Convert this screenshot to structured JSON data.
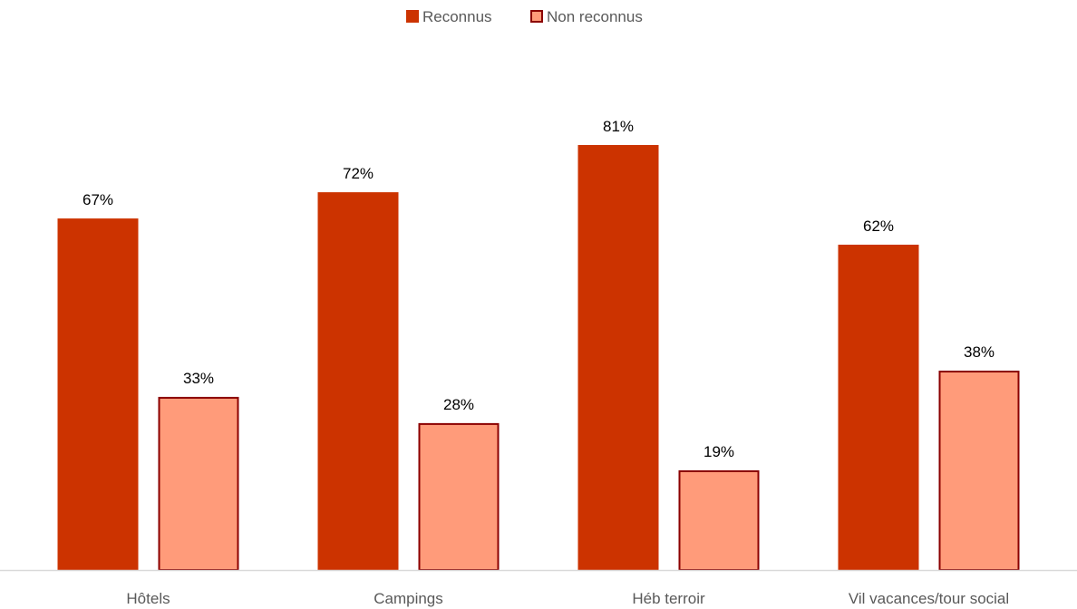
{
  "chart_data": {
    "type": "bar",
    "title": "",
    "xlabel": "",
    "ylabel": "",
    "ylim": [
      0,
      100
    ],
    "grid": false,
    "legend_position": "top",
    "categories": [
      "Hôtels",
      "Campings",
      "Héb terroir",
      "Vil vacances/tour social"
    ],
    "series": [
      {
        "name": "Reconnus",
        "values": [
          67,
          72,
          81,
          62
        ],
        "labels": [
          "67%",
          "72%",
          "81%",
          "62%"
        ],
        "color": "#cc3300",
        "stroke": "#cc3300"
      },
      {
        "name": "Non reconnus",
        "values": [
          33,
          28,
          19,
          38
        ],
        "labels": [
          "33%",
          "28%",
          "19%",
          "38%"
        ],
        "color": "#ff9b7a",
        "stroke": "#8b0000"
      }
    ],
    "axis_color": "#d9d9d9"
  }
}
